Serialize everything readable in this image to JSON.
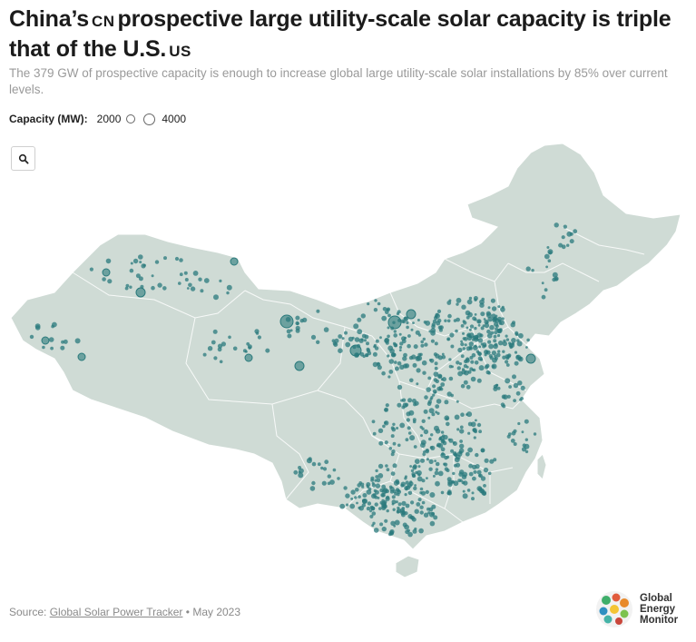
{
  "title": {
    "part1": "China’s",
    "flag1": "CN",
    "part2": "prospective large utility-scale solar capacity is triple that of the U.S.",
    "flag2": "US"
  },
  "subtitle": "The 379 GW of prospective capacity is enough to increase global large utility-scale solar installations by 85% over current levels.",
  "legend": {
    "label": "Capacity (MW):",
    "small_value": "2000",
    "large_value": "4000"
  },
  "search": {
    "icon": "search-icon"
  },
  "source": {
    "prefix": "Source:",
    "link_text": "Global Solar Power Tracker",
    "suffix": "• May 2023"
  },
  "logo": {
    "line1": "Global",
    "line2": "Energy",
    "line3": "Monitor"
  },
  "colors": {
    "land": "#cfdbd5",
    "border": "#ffffff",
    "dot": "#2a7a7c",
    "title": "#1b1b1b",
    "subtitle": "#9a9a9a"
  }
}
